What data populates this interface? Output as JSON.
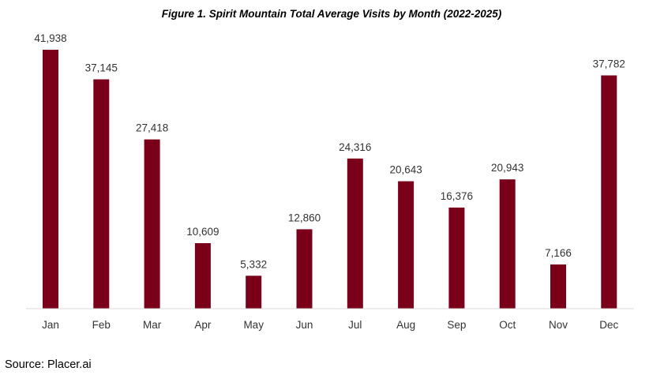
{
  "chart_data": {
    "type": "bar",
    "title": "Figure 1. Spirit Mountain Total Average Visits by Month (2022-2025)",
    "xlabel": "",
    "ylabel": "",
    "categories": [
      "Jan",
      "Feb",
      "Mar",
      "Apr",
      "May",
      "Jun",
      "Jul",
      "Aug",
      "Sep",
      "Oct",
      "Nov",
      "Dec"
    ],
    "values": [
      41938,
      37145,
      27418,
      10609,
      5332,
      12860,
      24316,
      20643,
      16376,
      20943,
      7166,
      37782
    ],
    "value_labels": [
      "41,938",
      "37,145",
      "27,418",
      "10,609",
      "5,332",
      "12,860",
      "24,316",
      "20,643",
      "16,376",
      "20,943",
      "7,166",
      "37,782"
    ],
    "ylim": [
      0,
      50000
    ],
    "bar_color": "#7a0019",
    "grid": false,
    "legend": "none"
  },
  "source": "Source: Placer.ai"
}
